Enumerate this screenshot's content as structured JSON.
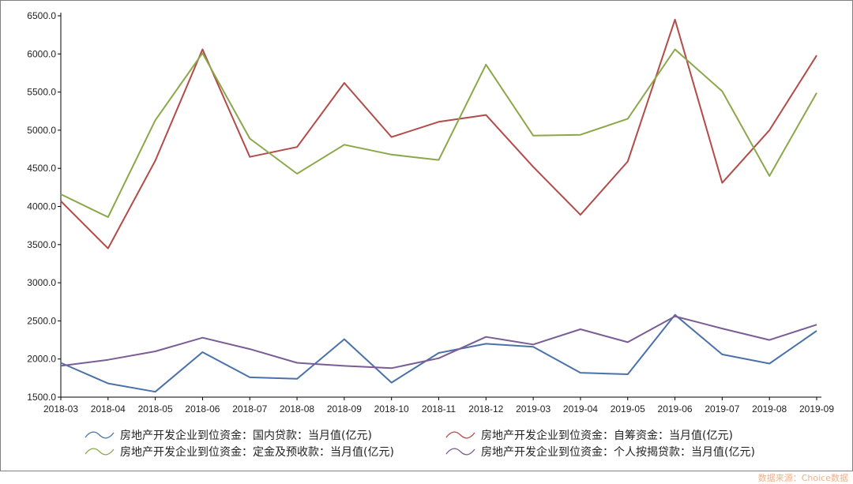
{
  "chart_data": {
    "type": "line",
    "categories": [
      "2018-03",
      "2018-04",
      "2018-05",
      "2018-06",
      "2018-07",
      "2018-08",
      "2018-09",
      "2018-10",
      "2018-11",
      "2018-12",
      "2019-03",
      "2019-04",
      "2019-05",
      "2019-06",
      "2019-07",
      "2019-08",
      "2019-09"
    ],
    "ylim": [
      1500,
      6500
    ],
    "yticks": [
      "1500.0",
      "2000.0",
      "2500.0",
      "3000.0",
      "3500.0",
      "4000.0",
      "4500.0",
      "5000.0",
      "5500.0",
      "6000.0",
      "6500.0"
    ],
    "grid": false,
    "legend_position": "bottom",
    "series": [
      {
        "name": "房地产开发企业到位资金：国内贷款：当月值(亿元)",
        "color": "#4a72a8",
        "values": [
          1950,
          1680,
          1570,
          2090,
          1760,
          1740,
          2260,
          1690,
          2080,
          2200,
          2160,
          1820,
          1800,
          2580,
          2060,
          1940,
          2370
        ]
      },
      {
        "name": "房地产开发企业到位资金：自筹资金：当月值(亿元)",
        "color": "#b34b48",
        "values": [
          4070,
          3450,
          4600,
          6060,
          4650,
          4780,
          5620,
          4910,
          5110,
          5200,
          4520,
          3890,
          4590,
          6450,
          4310,
          5000,
          5980
        ]
      },
      {
        "name": "房地产开发企业到位资金：定金及预收款：当月值(亿元)",
        "color": "#8aa84a",
        "values": [
          4160,
          3860,
          5130,
          6010,
          4890,
          4430,
          4810,
          4680,
          4610,
          5860,
          4930,
          4940,
          5150,
          6060,
          5510,
          4400,
          5490
        ]
      },
      {
        "name": "房地产开发企业到位资金：个人按揭贷款：当月值(亿元)",
        "color": "#7a5c96",
        "values": [
          1910,
          1990,
          2100,
          2280,
          2130,
          1950,
          1910,
          1880,
          2010,
          2290,
          2190,
          2390,
          2220,
          2560,
          2400,
          2250,
          2450
        ]
      }
    ]
  },
  "footer": {
    "source": "数据来源：Choice数据"
  }
}
